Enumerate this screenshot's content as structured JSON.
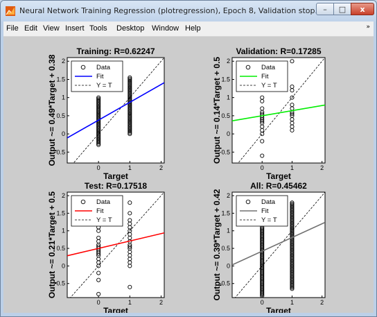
{
  "window": {
    "title": "Neural Network Training Regression (plotregression), Epoch 8, Validation stop.",
    "controls": {
      "minimize": "–",
      "maximize": "□",
      "close": "x"
    }
  },
  "menubar": {
    "items": [
      "File",
      "Edit",
      "View",
      "Insert",
      "Tools",
      "Desktop",
      "Window",
      "Help"
    ],
    "overflow_arrow": "»"
  },
  "colors": {
    "training": "#0000ff",
    "validation": "#00ee00",
    "test": "#ff0000",
    "all": "#707070"
  },
  "chart_data": [
    {
      "type": "scatter",
      "title": "Training: R=0.62247",
      "xlabel": "Target",
      "ylabel": "Output ~= 0.49*Target + 0.38",
      "xlim": [
        -1,
        2.1
      ],
      "ylim": [
        -0.8,
        2.1
      ],
      "xticks": [
        0,
        1,
        2
      ],
      "yticks": [
        -0.5,
        0,
        0.5,
        1,
        1.5,
        2
      ],
      "fit": {
        "slope": 0.49,
        "intercept": 0.38,
        "color": "#0000ff"
      },
      "legend": [
        "Data",
        "Fit",
        "Y = T"
      ],
      "legend_position": "top-left",
      "data": [
        {
          "x": 0,
          "y_min": -0.3,
          "y_max": 1.0,
          "dense": true
        },
        {
          "x": 1,
          "y_min": 0.0,
          "y_max": 1.55,
          "dense": true
        }
      ]
    },
    {
      "type": "scatter",
      "title": "Validation: R=0.17285",
      "xlabel": "Target",
      "ylabel": "Output ~= 0.14*Target + 0.5",
      "xlim": [
        -1,
        2.1
      ],
      "ylim": [
        -0.8,
        2.1
      ],
      "xticks": [
        0,
        1,
        2
      ],
      "yticks": [
        -0.5,
        0,
        0.5,
        1,
        1.5,
        2
      ],
      "fit": {
        "slope": 0.14,
        "intercept": 0.5,
        "color": "#00ee00"
      },
      "legend": [
        "Data",
        "Fit",
        "Y = T"
      ],
      "legend_position": "top-left",
      "data": [
        {
          "x": 0,
          "y": [
            -0.6,
            -0.2,
            0.0,
            0.1,
            0.2,
            0.3,
            0.35,
            0.4,
            0.45,
            0.5,
            0.55,
            0.6,
            0.7,
            0.9,
            1.0
          ]
        },
        {
          "x": 1,
          "y": [
            0.1,
            0.2,
            0.3,
            0.4,
            0.5,
            0.55,
            0.6,
            0.7,
            0.8,
            1.0,
            1.2,
            1.3,
            2.0
          ]
        }
      ]
    },
    {
      "type": "scatter",
      "title": "Test: R=0.17518",
      "xlabel": "Target",
      "ylabel": "Output ~= 0.21*Target + 0.5",
      "xlim": [
        -1,
        2.1
      ],
      "ylim": [
        -0.9,
        2.1
      ],
      "xticks": [
        0,
        1,
        2
      ],
      "yticks": [
        -0.5,
        0,
        0.5,
        1,
        1.5,
        2
      ],
      "fit": {
        "slope": 0.21,
        "intercept": 0.5,
        "color": "#ff0000"
      },
      "legend": [
        "Data",
        "Fit",
        "Y = T"
      ],
      "legend_position": "top-left",
      "data": [
        {
          "x": 0,
          "y": [
            -0.8,
            -0.4,
            -0.2,
            0.0,
            0.1,
            0.2,
            0.3,
            0.35,
            0.4,
            0.45,
            0.5,
            0.55,
            0.6,
            0.7,
            0.8,
            1.0,
            1.1
          ]
        },
        {
          "x": 1,
          "y": [
            -0.6,
            0.0,
            0.1,
            0.2,
            0.3,
            0.4,
            0.5,
            0.55,
            0.6,
            0.7,
            0.8,
            0.9,
            1.0,
            1.1,
            1.2,
            1.3,
            1.5,
            1.8
          ]
        }
      ]
    },
    {
      "type": "scatter",
      "title": "All: R=0.45462",
      "xlabel": "Target",
      "ylabel": "Output ~= 0.39*Target + 0.42",
      "xlim": [
        -1,
        2.1
      ],
      "ylim": [
        -0.9,
        2.1
      ],
      "xticks": [
        0,
        1,
        2
      ],
      "yticks": [
        -0.5,
        0,
        0.5,
        1,
        1.5,
        2
      ],
      "fit": {
        "slope": 0.39,
        "intercept": 0.42,
        "color": "#707070"
      },
      "legend": [
        "Data",
        "Fit",
        "Y = T"
      ],
      "legend_position": "top-left",
      "data": [
        {
          "x": 0,
          "y_min": -0.85,
          "y_max": 1.1,
          "dense": true
        },
        {
          "x": 1,
          "y_min": -0.65,
          "y_max": 1.8,
          "dense": true
        }
      ]
    }
  ]
}
